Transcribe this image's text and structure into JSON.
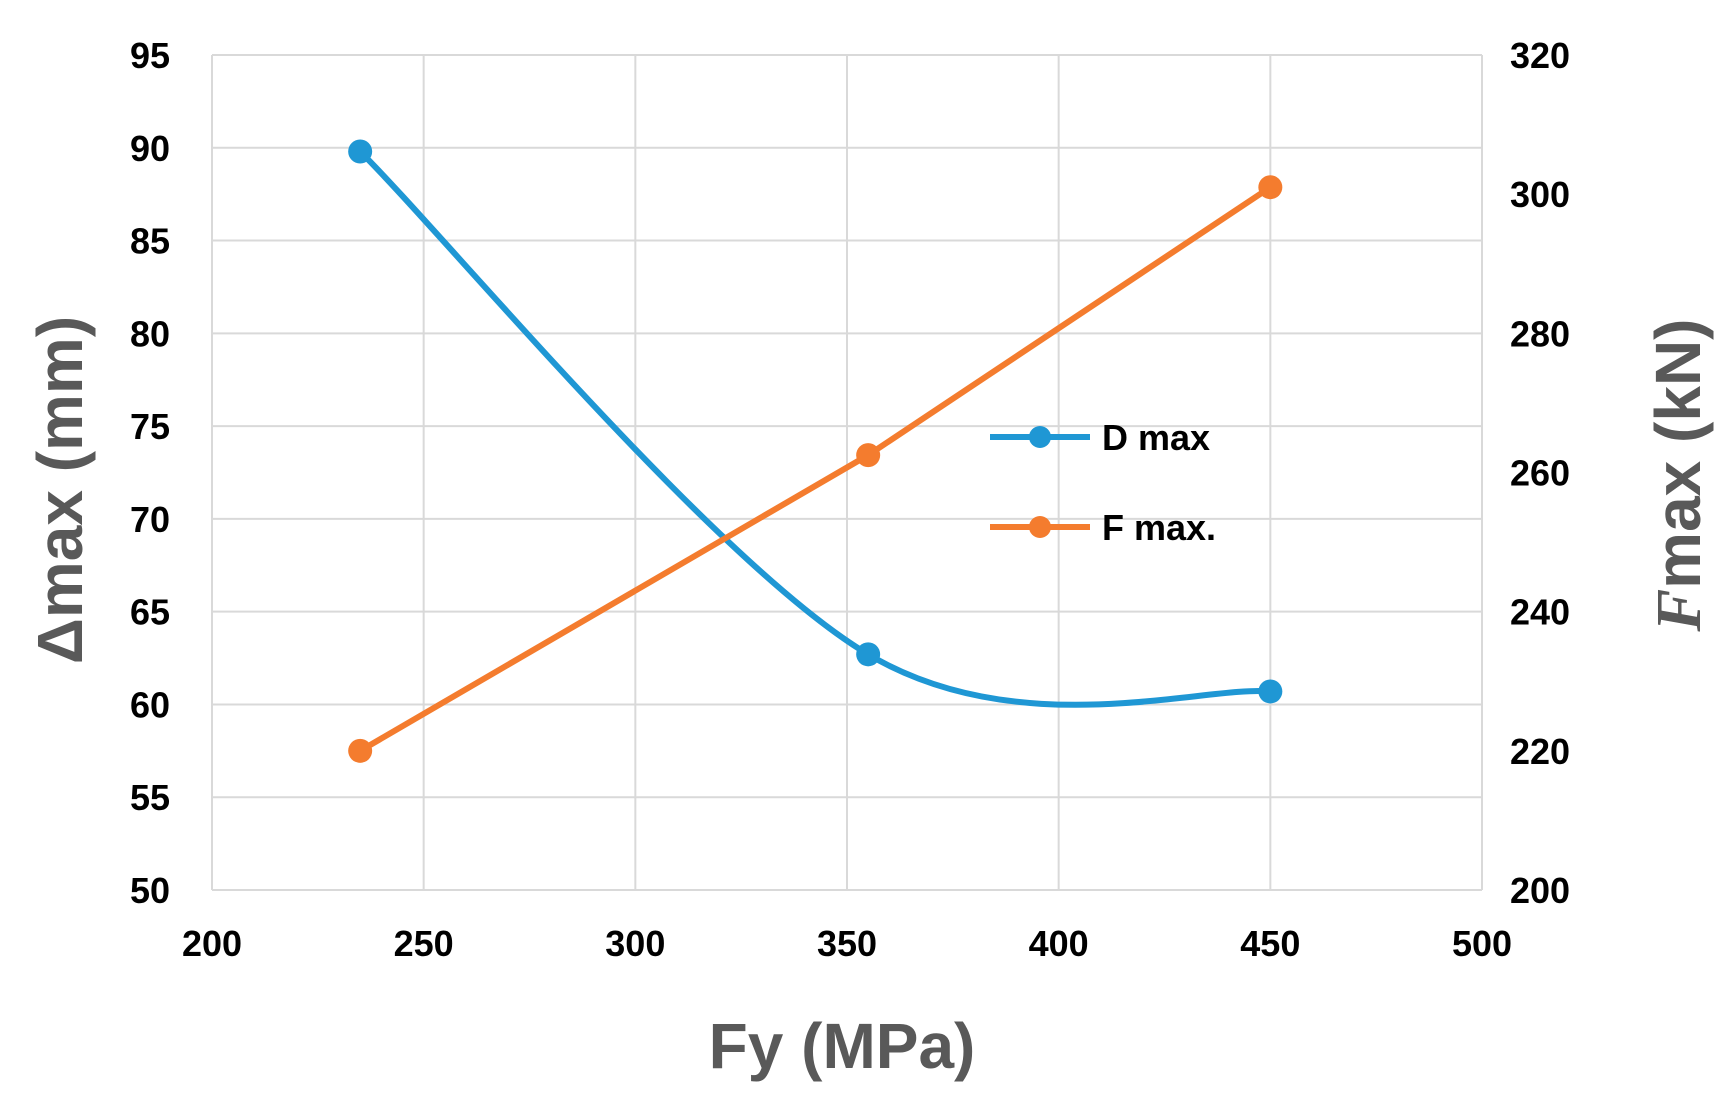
{
  "chart_data": {
    "type": "line",
    "xlabel": "Fy (MPa)",
    "ylabel_left": "Δmax (mm)",
    "ylabel_right_symbol": "F",
    "ylabel_right_rest": "max (kN)",
    "xlim": [
      200,
      500
    ],
    "xticks": [
      "200",
      "250",
      "300",
      "350",
      "400",
      "450",
      "500"
    ],
    "ylim_left": [
      50,
      95
    ],
    "yticks_left": [
      "50",
      "55",
      "60",
      "65",
      "70",
      "75",
      "80",
      "85",
      "90",
      "95"
    ],
    "ylim_right": [
      200,
      320
    ],
    "yticks_right": [
      "200",
      "220",
      "240",
      "260",
      "280",
      "300",
      "320"
    ],
    "grid": true,
    "legend_position": "center-right",
    "series": [
      {
        "name": "D max",
        "axis": "left",
        "color": "#1f97d4",
        "smooth": true,
        "x": [
          235,
          355,
          450
        ],
        "y": [
          89.8,
          62.7,
          60.7
        ]
      },
      {
        "name": "F max.",
        "axis": "right",
        "color": "#f47c2e",
        "smooth": false,
        "x": [
          235,
          355,
          450
        ],
        "y": [
          220,
          262.5,
          301
        ]
      }
    ]
  }
}
